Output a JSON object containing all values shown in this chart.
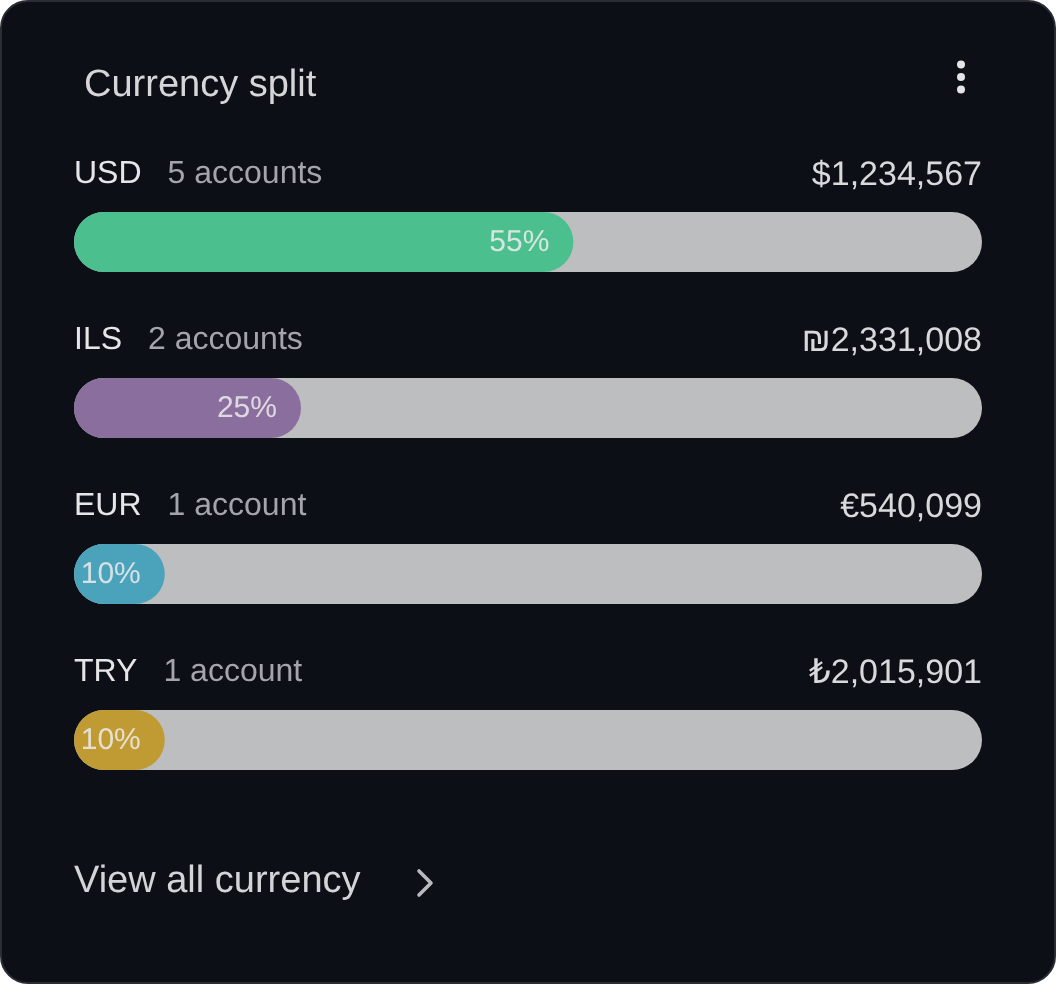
{
  "chart_data": {
    "type": "bar",
    "orientation": "horizontal",
    "title": "Currency split",
    "categories": [
      "USD",
      "ILS",
      "EUR",
      "TRY"
    ],
    "values": [
      55,
      25,
      10,
      10
    ],
    "colors": [
      "#4cbf8f",
      "#8a6f9e",
      "#4ba3bb",
      "#c09a33"
    ],
    "value_labels": [
      "55%",
      "25%",
      "10%",
      "10%"
    ],
    "xlim": [
      0,
      100
    ],
    "tick_labels": "y",
    "annotations": [
      "5 accounts",
      "$1,234,567",
      "2 accounts",
      "₪2,331,008",
      "1 account",
      "€540,099",
      "1 account",
      "₺2,015,901",
      "View all currency"
    ]
  }
}
